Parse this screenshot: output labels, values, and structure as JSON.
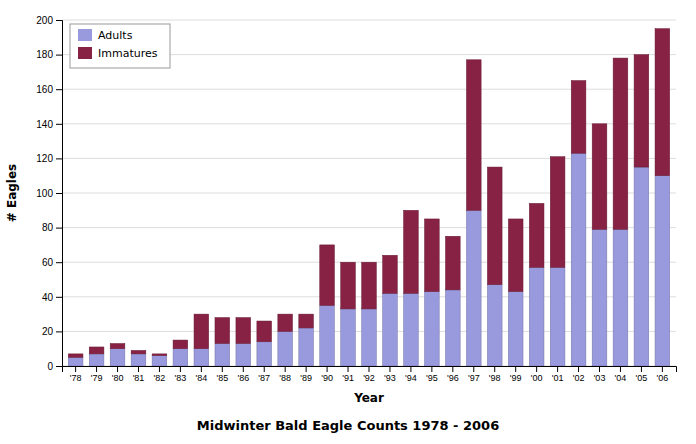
{
  "chart_data": {
    "type": "bar",
    "stacked": true,
    "title": "Midwinter Bald Eagle Counts 1978 - 2006",
    "xlabel": "Year",
    "ylabel": "# Eagles",
    "categories": [
      "'78",
      "'79",
      "'80",
      "'81",
      "'82",
      "'83",
      "'84",
      "'85",
      "'86",
      "'87",
      "'88",
      "'89",
      "'90",
      "'91",
      "'92",
      "'93",
      "'94",
      "'95",
      "'96",
      "'97",
      "'98",
      "'99",
      "'00",
      "'01",
      "'02",
      "'03",
      "'04",
      "'05",
      "'06"
    ],
    "series": [
      {
        "name": "Adults",
        "color": "#9999dd",
        "values": [
          5,
          7,
          10,
          7,
          6,
          10,
          10,
          13,
          13,
          14,
          20,
          22,
          35,
          33,
          33,
          42,
          42,
          43,
          44,
          90,
          47,
          43,
          57,
          57,
          123,
          79,
          79,
          115,
          110
        ]
      },
      {
        "name": "Immatures",
        "color": "#882244",
        "values": [
          2,
          4,
          3,
          2,
          1,
          5,
          20,
          15,
          15,
          12,
          10,
          8,
          35,
          27,
          27,
          22,
          48,
          42,
          31,
          87,
          68,
          42,
          37,
          64,
          42,
          61,
          99,
          65,
          85
        ]
      }
    ],
    "ylim": [
      0,
      200
    ],
    "yticks": [
      0,
      20,
      40,
      60,
      80,
      100,
      120,
      140,
      160,
      180,
      200
    ],
    "grid": true,
    "legend": "upper left"
  }
}
